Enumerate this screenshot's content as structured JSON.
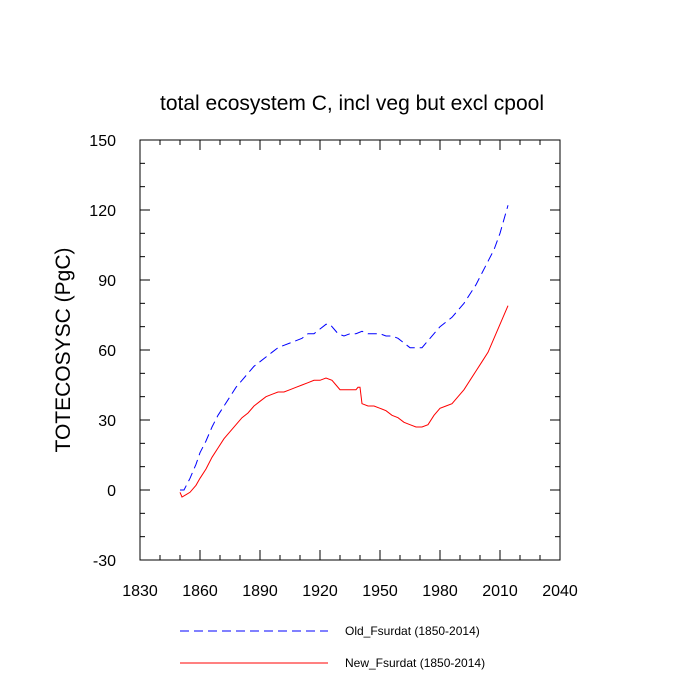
{
  "chart_data": {
    "type": "line",
    "title": "total ecosystem C, incl veg but excl cpool",
    "xlabel": "",
    "ylabel": "TOTECOSYSC  (PgC)",
    "xlim": [
      1830,
      2040
    ],
    "ylim": [
      -30,
      150
    ],
    "xticks": [
      1830,
      1860,
      1890,
      1920,
      1950,
      1980,
      2010,
      2040
    ],
    "yticks": [
      -30,
      0,
      30,
      60,
      90,
      120,
      150
    ],
    "x_minor_step": 10,
    "y_minor_step": 10,
    "grid": false,
    "legend_position": "bottom",
    "series": [
      {
        "name": "Old_Fsurdat (1850-2014)",
        "color": "#0000ff",
        "dash": "dashed",
        "x": [
          1850,
          1852,
          1855,
          1858,
          1860,
          1863,
          1866,
          1869,
          1872,
          1875,
          1878,
          1881,
          1884,
          1887,
          1890,
          1893,
          1896,
          1899,
          1902,
          1905,
          1908,
          1911,
          1914,
          1917,
          1920,
          1923,
          1925,
          1927,
          1929,
          1932,
          1935,
          1938,
          1941,
          1944,
          1947,
          1950,
          1953,
          1956,
          1959,
          1962,
          1965,
          1968,
          1971,
          1974,
          1977,
          1980,
          1983,
          1986,
          1989,
          1992,
          1995,
          1998,
          2001,
          2004,
          2007,
          2010,
          2014
        ],
        "values": [
          0,
          0,
          5,
          11,
          16,
          21,
          27,
          32,
          36,
          40,
          44,
          47,
          50,
          53,
          55,
          57,
          59,
          61,
          62,
          63,
          64,
          65,
          67,
          67,
          69,
          71,
          71,
          69,
          67,
          66,
          67,
          67,
          68,
          67,
          67,
          67,
          66,
          66,
          65,
          63,
          61,
          61,
          61,
          64,
          67,
          70,
          72,
          74,
          77,
          80,
          84,
          88,
          93,
          98,
          103,
          110,
          122
        ]
      },
      {
        "name": "New_Fsurdat (1850-2014)",
        "color": "#ff0000",
        "dash": "solid",
        "x": [
          1850,
          1851,
          1853,
          1855,
          1858,
          1860,
          1863,
          1866,
          1869,
          1872,
          1875,
          1878,
          1881,
          1884,
          1887,
          1890,
          1893,
          1896,
          1899,
          1902,
          1905,
          1908,
          1911,
          1914,
          1917,
          1920,
          1923,
          1926,
          1928,
          1930,
          1933,
          1936,
          1938,
          1939,
          1940,
          1941,
          1944,
          1947,
          1950,
          1953,
          1956,
          1959,
          1962,
          1965,
          1968,
          1971,
          1974,
          1977,
          1980,
          1983,
          1986,
          1989,
          1992,
          1995,
          1998,
          2001,
          2004,
          2007,
          2010,
          2014
        ],
        "values": [
          -1,
          -3,
          -2,
          -1,
          2,
          5,
          9,
          14,
          18,
          22,
          25,
          28,
          31,
          33,
          36,
          38,
          40,
          41,
          42,
          42,
          43,
          44,
          45,
          46,
          47,
          47,
          48,
          47,
          45,
          43,
          43,
          43,
          43,
          44,
          44,
          37,
          36,
          36,
          35,
          34,
          32,
          31,
          29,
          28,
          27,
          27,
          28,
          32,
          35,
          36,
          37,
          40,
          43,
          47,
          51,
          55,
          59,
          65,
          71,
          79
        ]
      }
    ]
  }
}
